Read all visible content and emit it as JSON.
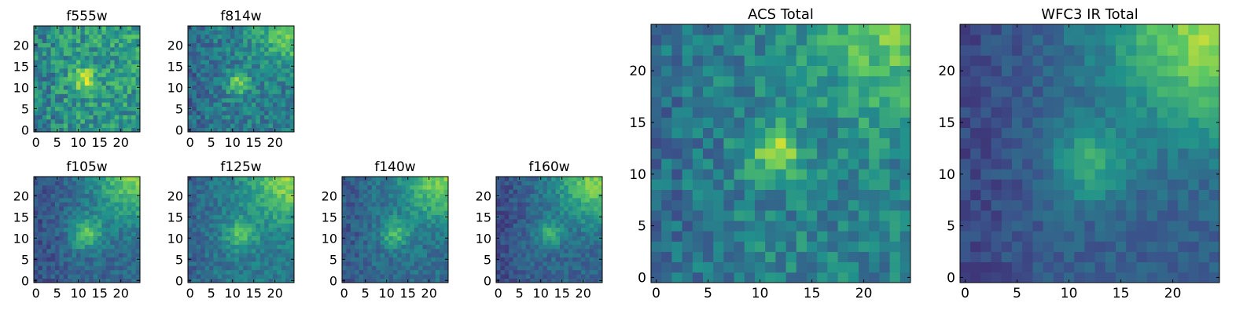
{
  "chart_data": {
    "type": "heatmap",
    "grid_size": 25,
    "colormap": "viridis",
    "colormap_stops": [
      "#440154",
      "#3b528b",
      "#21918c",
      "#5ec962",
      "#fde725"
    ],
    "panels": [
      {
        "title": "f555w",
        "group": "small",
        "xticks": [
          0,
          5,
          10,
          15,
          20
        ],
        "yticks": [
          0,
          5,
          10,
          15,
          20
        ],
        "xlim": [
          0,
          25
        ],
        "ylim": [
          0,
          25
        ],
        "source": {
          "x": 11.5,
          "y": 12,
          "sigma": 2.0,
          "amp": 0.35
        },
        "gradient": {
          "amp": 0.05,
          "sigma": 10
        },
        "base": 0.52,
        "noise": 0.18,
        "seed": 11
      },
      {
        "title": "f814w",
        "group": "small",
        "xticks": [
          0,
          5,
          10,
          15,
          20
        ],
        "yticks": [
          0,
          5,
          10,
          15,
          20
        ],
        "xlim": [
          0,
          25
        ],
        "ylim": [
          0,
          25
        ],
        "source": {
          "x": 11.5,
          "y": 11,
          "sigma": 1.8,
          "amp": 0.38
        },
        "gradient": {
          "amp": 0.35,
          "sigma": 6
        },
        "base": 0.42,
        "noise": 0.14,
        "seed": 23
      },
      {
        "title": "f105w",
        "group": "small",
        "xticks": [
          0,
          5,
          10,
          15,
          20
        ],
        "yticks": [
          0,
          5,
          10,
          15,
          20
        ],
        "xlim": [
          0,
          25
        ],
        "ylim": [
          0,
          25
        ],
        "source": {
          "x": 12,
          "y": 11,
          "sigma": 2.6,
          "amp": 0.38
        },
        "gradient": {
          "amp": 0.45,
          "sigma": 7
        },
        "base": 0.33,
        "noise": 0.1,
        "seed": 37
      },
      {
        "title": "f125w",
        "group": "small",
        "xticks": [
          0,
          5,
          10,
          15,
          20
        ],
        "yticks": [
          0,
          5,
          10,
          15,
          20
        ],
        "xlim": [
          0,
          25
        ],
        "ylim": [
          0,
          25
        ],
        "source": {
          "x": 12,
          "y": 11,
          "sigma": 2.5,
          "amp": 0.3
        },
        "gradient": {
          "amp": 0.42,
          "sigma": 7
        },
        "base": 0.4,
        "noise": 0.1,
        "seed": 41
      },
      {
        "title": "f140w",
        "group": "small",
        "xticks": [
          0,
          5,
          10,
          15,
          20
        ],
        "yticks": [
          0,
          5,
          10,
          15,
          20
        ],
        "xlim": [
          0,
          25
        ],
        "ylim": [
          0,
          25
        ],
        "source": {
          "x": 12,
          "y": 11,
          "sigma": 2.3,
          "amp": 0.3
        },
        "gradient": {
          "amp": 0.45,
          "sigma": 7
        },
        "base": 0.36,
        "noise": 0.1,
        "seed": 53
      },
      {
        "title": "f160w",
        "group": "small",
        "xticks": [
          0,
          5,
          10,
          15,
          20
        ],
        "yticks": [
          0,
          5,
          10,
          15,
          20
        ],
        "xlim": [
          0,
          25
        ],
        "ylim": [
          0,
          25
        ],
        "source": {
          "x": 12,
          "y": 11,
          "sigma": 2.3,
          "amp": 0.28
        },
        "gradient": {
          "amp": 0.5,
          "sigma": 7
        },
        "base": 0.32,
        "noise": 0.09,
        "seed": 67
      },
      {
        "title": "ACS Total",
        "group": "large",
        "xticks": [
          0,
          5,
          10,
          15,
          20
        ],
        "yticks": [
          0,
          5,
          10,
          15,
          20
        ],
        "xlim": [
          0,
          25
        ],
        "ylim": [
          0,
          25
        ],
        "source": {
          "x": 11.5,
          "y": 12,
          "sigma": 1.7,
          "amp": 0.42
        },
        "gradient": {
          "amp": 0.32,
          "sigma": 6
        },
        "base": 0.44,
        "noise": 0.14,
        "seed": 79
      },
      {
        "title": "WFC3 IR Total",
        "group": "large",
        "xticks": [
          0,
          5,
          10,
          15,
          20
        ],
        "yticks": [
          0,
          5,
          10,
          15,
          20
        ],
        "xlim": [
          0,
          25
        ],
        "ylim": [
          0,
          25
        ],
        "source": {
          "x": 12,
          "y": 11,
          "sigma": 2.5,
          "amp": 0.3
        },
        "gradient": {
          "amp": 0.55,
          "sigma": 7
        },
        "base": 0.3,
        "noise": 0.07,
        "seed": 97
      }
    ]
  }
}
